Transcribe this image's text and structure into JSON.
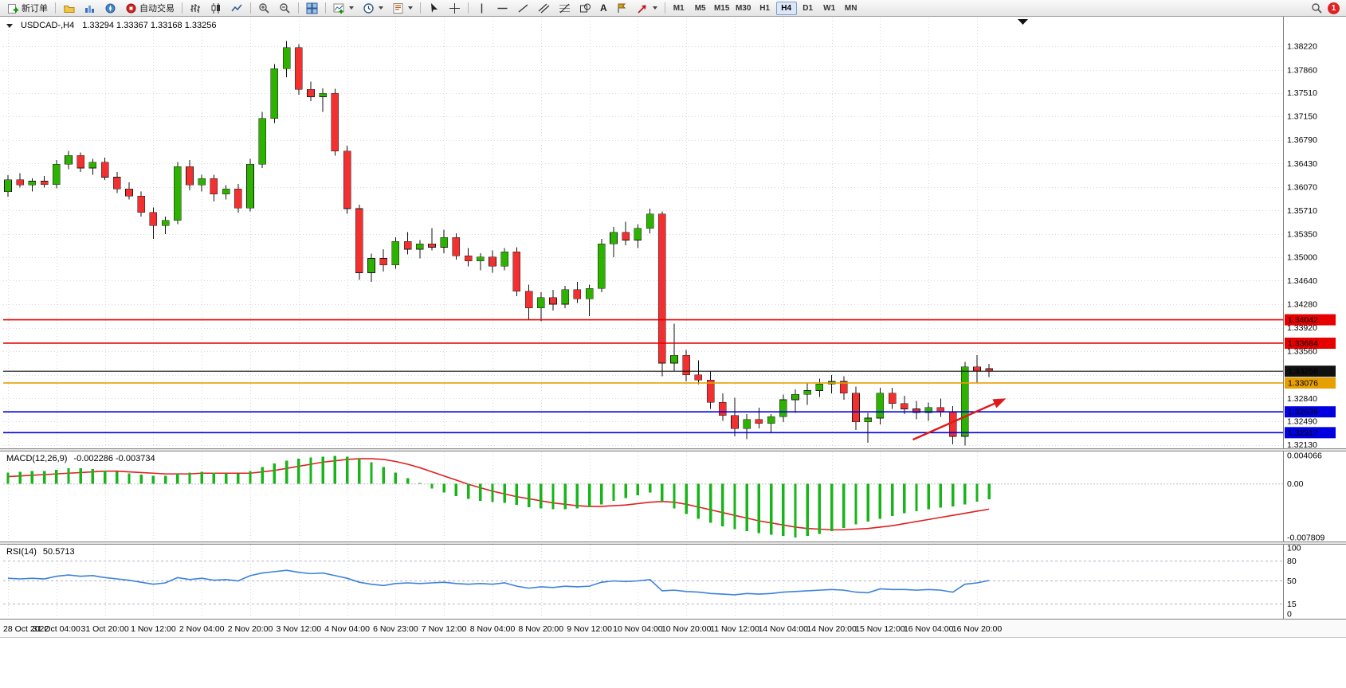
{
  "toolbar": {
    "new_order": "新订单",
    "autotrading": "自动交易",
    "text_tool_glyph": "A",
    "timeframes": [
      "M1",
      "M5",
      "M15",
      "M30",
      "H1",
      "H4",
      "D1",
      "W1",
      "MN"
    ],
    "active_timeframe": "H4",
    "notification_count": "1"
  },
  "chart_data": [
    {
      "type": "candlestick",
      "title": "USDCAD-,H4",
      "ohlc_display": "1.33294 1.33367 1.33168 1.33256",
      "up_color": "#2db200",
      "down_color": "#f23030",
      "wick_color": "#111111",
      "y_render_range": [
        1.3209,
        1.3866
      ],
      "y_ticks": [
        1.3822,
        1.3786,
        1.3751,
        1.3715,
        1.3679,
        1.3643,
        1.3607,
        1.3571,
        1.3535,
        1.35,
        1.3464,
        1.3428,
        1.3392,
        1.3356,
        1.3284,
        1.3249,
        1.3213
      ],
      "grid_extra": [
        1.332
      ],
      "x_labels": [
        "28 Oct 2022",
        "31 Oct 04:00",
        "31 Oct 20:00",
        "1 Nov 12:00",
        "2 Nov 04:00",
        "2 Nov 20:00",
        "3 Nov 12:00",
        "4 Nov 04:00",
        "6 Nov 23:00",
        "7 Nov 12:00",
        "8 Nov 04:00",
        "8 Nov 20:00",
        "9 Nov 12:00",
        "10 Nov 04:00",
        "10 Nov 20:00",
        "11 Nov 12:00",
        "14 Nov 04:00",
        "14 Nov 20:00",
        "15 Nov 12:00",
        "16 Nov 04:00",
        "16 Nov 20:00"
      ],
      "x_label_step": 4,
      "candles": [
        [
          1.36,
          1.3625,
          1.3592,
          1.3618
        ],
        [
          1.3618,
          1.3628,
          1.3606,
          1.361
        ],
        [
          1.361,
          1.362,
          1.36,
          1.3616
        ],
        [
          1.3616,
          1.3624,
          1.3606,
          1.3611
        ],
        [
          1.3611,
          1.3648,
          1.3605,
          1.3642
        ],
        [
          1.3642,
          1.3662,
          1.3634,
          1.3655
        ],
        [
          1.3655,
          1.366,
          1.363,
          1.3636
        ],
        [
          1.3636,
          1.365,
          1.3626,
          1.3645
        ],
        [
          1.3645,
          1.3652,
          1.3618,
          1.3622
        ],
        [
          1.3622,
          1.363,
          1.3598,
          1.3604
        ],
        [
          1.3604,
          1.3614,
          1.3588,
          1.3593
        ],
        [
          1.3593,
          1.36,
          1.3562,
          1.3568
        ],
        [
          1.3568,
          1.3576,
          1.3528,
          1.3548
        ],
        [
          1.3548,
          1.3562,
          1.3535,
          1.3556
        ],
        [
          1.3556,
          1.3645,
          1.355,
          1.3638
        ],
        [
          1.3638,
          1.3648,
          1.3602,
          1.361
        ],
        [
          1.361,
          1.3626,
          1.36,
          1.362
        ],
        [
          1.362,
          1.3626,
          1.3585,
          1.3596
        ],
        [
          1.3596,
          1.361,
          1.3588,
          1.3604
        ],
        [
          1.3604,
          1.3612,
          1.3568,
          1.3575
        ],
        [
          1.3575,
          1.365,
          1.357,
          1.3642
        ],
        [
          1.3642,
          1.3722,
          1.3636,
          1.3712
        ],
        [
          1.3712,
          1.3795,
          1.3705,
          1.3788
        ],
        [
          1.3788,
          1.383,
          1.3775,
          1.382
        ],
        [
          1.382,
          1.3825,
          1.3748,
          1.3756
        ],
        [
          1.3756,
          1.3768,
          1.3738,
          1.3745
        ],
        [
          1.3745,
          1.3758,
          1.3722,
          1.375
        ],
        [
          1.375,
          1.3757,
          1.3655,
          1.3662
        ],
        [
          1.3662,
          1.367,
          1.3566,
          1.3574
        ],
        [
          1.3574,
          1.358,
          1.3465,
          1.3476
        ],
        [
          1.3476,
          1.3505,
          1.3462,
          1.3498
        ],
        [
          1.3498,
          1.3512,
          1.3478,
          1.3488
        ],
        [
          1.3488,
          1.353,
          1.3482,
          1.3524
        ],
        [
          1.3524,
          1.3538,
          1.3504,
          1.3512
        ],
        [
          1.3512,
          1.3526,
          1.3498,
          1.352
        ],
        [
          1.352,
          1.3544,
          1.351,
          1.3515
        ],
        [
          1.3515,
          1.3542,
          1.3506,
          1.353
        ],
        [
          1.353,
          1.3536,
          1.3496,
          1.3502
        ],
        [
          1.3502,
          1.3514,
          1.3486,
          1.3494
        ],
        [
          1.3494,
          1.3506,
          1.348,
          1.35
        ],
        [
          1.35,
          1.351,
          1.3476,
          1.3486
        ],
        [
          1.3486,
          1.3514,
          1.348,
          1.3508
        ],
        [
          1.3508,
          1.3515,
          1.344,
          1.3448
        ],
        [
          1.3448,
          1.3458,
          1.3404,
          1.3422
        ],
        [
          1.3422,
          1.3446,
          1.3402,
          1.3438
        ],
        [
          1.3438,
          1.345,
          1.3418,
          1.3428
        ],
        [
          1.3428,
          1.3456,
          1.3422,
          1.345
        ],
        [
          1.345,
          1.3462,
          1.343,
          1.3436
        ],
        [
          1.3436,
          1.3458,
          1.341,
          1.3452
        ],
        [
          1.3452,
          1.3528,
          1.3446,
          1.352
        ],
        [
          1.352,
          1.3546,
          1.35,
          1.3538
        ],
        [
          1.3538,
          1.3554,
          1.3518,
          1.3526
        ],
        [
          1.3526,
          1.355,
          1.3514,
          1.3544
        ],
        [
          1.3544,
          1.3574,
          1.3536,
          1.3566
        ],
        [
          1.3566,
          1.357,
          1.3318,
          1.3338
        ],
        [
          1.3338,
          1.3398,
          1.3326,
          1.335
        ],
        [
          1.335,
          1.3358,
          1.331,
          1.332
        ],
        [
          1.332,
          1.3342,
          1.3306,
          1.3312
        ],
        [
          1.3312,
          1.3326,
          1.3268,
          1.3278
        ],
        [
          1.3278,
          1.3292,
          1.325,
          1.3258
        ],
        [
          1.3258,
          1.3285,
          1.3226,
          1.3238
        ],
        [
          1.3238,
          1.326,
          1.3222,
          1.3252
        ],
        [
          1.3252,
          1.327,
          1.3238,
          1.3246
        ],
        [
          1.3246,
          1.326,
          1.3232,
          1.3256
        ],
        [
          1.3256,
          1.329,
          1.3248,
          1.3282
        ],
        [
          1.3282,
          1.3298,
          1.3262,
          1.329
        ],
        [
          1.329,
          1.3308,
          1.3274,
          1.3296
        ],
        [
          1.3296,
          1.3314,
          1.3286,
          1.3306
        ],
        [
          1.3306,
          1.332,
          1.3292,
          1.331
        ],
        [
          1.331,
          1.3318,
          1.3282,
          1.3292
        ],
        [
          1.3292,
          1.3302,
          1.3236,
          1.3248
        ],
        [
          1.3248,
          1.3262,
          1.3216,
          1.3254
        ],
        [
          1.3254,
          1.33,
          1.3244,
          1.3292
        ],
        [
          1.3292,
          1.33,
          1.3268,
          1.3276
        ],
        [
          1.3276,
          1.3288,
          1.326,
          1.3268
        ],
        [
          1.3268,
          1.328,
          1.3252,
          1.3262
        ],
        [
          1.3262,
          1.3278,
          1.325,
          1.327
        ],
        [
          1.327,
          1.3284,
          1.3256,
          1.3264
        ],
        [
          1.3264,
          1.3272,
          1.3214,
          1.3226
        ],
        [
          1.3226,
          1.334,
          1.3212,
          1.3332
        ],
        [
          1.3332,
          1.335,
          1.3308,
          1.3326
        ],
        [
          1.33294,
          1.33367,
          1.33168,
          1.33256
        ]
      ],
      "horizontal_lines": [
        {
          "price": 1.34042,
          "color": "#e60000",
          "badge": "1.34042",
          "name": "resistance-line-upper"
        },
        {
          "price": 1.33684,
          "color": "#e60000",
          "badge": "1.33684",
          "name": "resistance-line-lower"
        },
        {
          "price": 1.33256,
          "color": "#111111",
          "badge": "1.33256",
          "name": "bid-price-line"
        },
        {
          "price": 1.33076,
          "color": "#e6a000",
          "badge": "1.33076",
          "name": "pivot-line"
        },
        {
          "price": 1.32635,
          "color": "#0000e0",
          "badge": "1.32635",
          "name": "support-line-upper"
        },
        {
          "price": 1.32317,
          "color": "#0000e0",
          "badge": "1.32317",
          "name": "support-line-lower"
        }
      ],
      "arrow": {
        "from_index": 74.7,
        "from_price": 1.3221,
        "to_index": 82.4,
        "to_price": 1.3284,
        "color": "#e01818"
      }
    },
    {
      "type": "bar",
      "label": "MACD(12,26,9)",
      "values_display": "-0.002286 -0.003734",
      "bar_color": "#17b517",
      "signal_color": "#e02020",
      "y_range": [
        -0.007809,
        0.004066
      ],
      "y_ticks": [
        {
          "v": 0.004066,
          "t": "0.004066"
        },
        {
          "v": 0,
          "t": "0.00"
        },
        {
          "v": -0.007809,
          "t": "-0.007809"
        }
      ],
      "histogram": [
        0.0016,
        0.0017,
        0.0018,
        0.0018,
        0.002,
        0.0022,
        0.0022,
        0.0021,
        0.0019,
        0.0017,
        0.0015,
        0.0013,
        0.0011,
        0.0011,
        0.0014,
        0.0016,
        0.0017,
        0.0016,
        0.0015,
        0.0014,
        0.0018,
        0.0024,
        0.0029,
        0.0033,
        0.0036,
        0.0038,
        0.0039,
        0.004,
        0.0039,
        0.0036,
        0.0031,
        0.0024,
        0.0016,
        0.0008,
        0.0001,
        -0.0007,
        -0.0013,
        -0.0018,
        -0.0022,
        -0.0025,
        -0.0027,
        -0.0028,
        -0.0031,
        -0.0034,
        -0.0036,
        -0.0037,
        -0.0037,
        -0.0036,
        -0.0034,
        -0.003,
        -0.0025,
        -0.0021,
        -0.0017,
        -0.0013,
        -0.0026,
        -0.0036,
        -0.0044,
        -0.0051,
        -0.0057,
        -0.0062,
        -0.0066,
        -0.0069,
        -0.0072,
        -0.0074,
        -0.0076,
        -0.0078,
        -0.0076,
        -0.0073,
        -0.0069,
        -0.0064,
        -0.0059,
        -0.0055,
        -0.0051,
        -0.0047,
        -0.0043,
        -0.004,
        -0.0037,
        -0.0035,
        -0.0033,
        -0.003,
        -0.0026,
        -0.0023
      ],
      "signal": [
        0.001,
        0.0011,
        0.0012,
        0.0013,
        0.0014,
        0.0015,
        0.0016,
        0.0017,
        0.0018,
        0.0018,
        0.0017,
        0.0016,
        0.0015,
        0.0014,
        0.0014,
        0.0014,
        0.0015,
        0.0015,
        0.0015,
        0.0015,
        0.0015,
        0.0017,
        0.0019,
        0.0022,
        0.0025,
        0.0028,
        0.0031,
        0.0033,
        0.0035,
        0.0036,
        0.0036,
        0.0035,
        0.0032,
        0.0028,
        0.0023,
        0.0017,
        0.0011,
        0.0005,
        -0.0001,
        -0.0006,
        -0.0011,
        -0.0015,
        -0.0019,
        -0.0022,
        -0.0025,
        -0.0028,
        -0.003,
        -0.0032,
        -0.0033,
        -0.0033,
        -0.0032,
        -0.0031,
        -0.0029,
        -0.0027,
        -0.0026,
        -0.0027,
        -0.003,
        -0.0034,
        -0.0038,
        -0.0042,
        -0.0046,
        -0.005,
        -0.0054,
        -0.0057,
        -0.006,
        -0.0063,
        -0.0065,
        -0.0066,
        -0.0067,
        -0.0067,
        -0.0066,
        -0.0065,
        -0.0063,
        -0.0061,
        -0.0058,
        -0.0055,
        -0.0052,
        -0.0049,
        -0.0046,
        -0.0043,
        -0.004,
        -0.0037
      ]
    },
    {
      "type": "line",
      "label": "RSI(14)",
      "value_display": "50.5713",
      "line_color": "#3c82dc",
      "y_range": [
        0,
        100
      ],
      "levels": [
        80,
        50,
        15
      ],
      "y_ticks": [
        {
          "v": 100,
          "t": "100"
        },
        {
          "v": 80,
          "t": "80"
        },
        {
          "v": 50,
          "t": "50"
        },
        {
          "v": 15,
          "t": "15"
        },
        {
          "v": 0,
          "t": "0"
        }
      ],
      "values": [
        54,
        53,
        54,
        53,
        57,
        59,
        57,
        58,
        55,
        53,
        51,
        48,
        45,
        47,
        55,
        52,
        54,
        51,
        52,
        50,
        58,
        62,
        64,
        66,
        63,
        61,
        62,
        58,
        54,
        48,
        45,
        43,
        46,
        47,
        46,
        47,
        48,
        46,
        45,
        46,
        45,
        47,
        42,
        39,
        41,
        40,
        42,
        41,
        42,
        48,
        50,
        49,
        50,
        52,
        35,
        36,
        34,
        33,
        31,
        30,
        29,
        31,
        30,
        31,
        33,
        34,
        35,
        36,
        37,
        36,
        33,
        32,
        38,
        37,
        37,
        36,
        37,
        36,
        33,
        45,
        47,
        50.57
      ]
    }
  ]
}
